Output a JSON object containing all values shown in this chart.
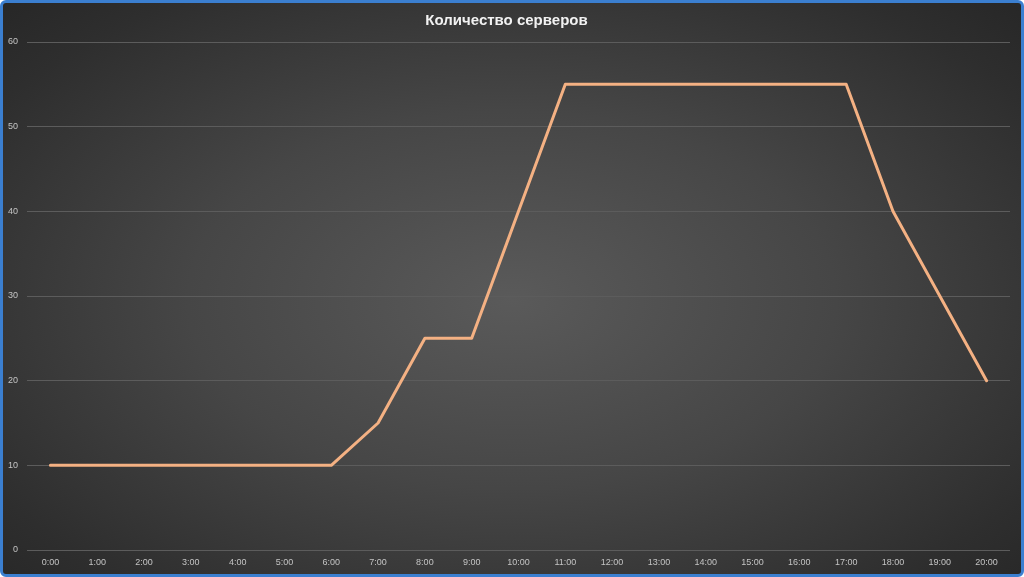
{
  "chart_data": {
    "type": "line",
    "title": "Количество серверов",
    "categories": [
      "0:00",
      "1:00",
      "2:00",
      "3:00",
      "4:00",
      "5:00",
      "6:00",
      "7:00",
      "8:00",
      "9:00",
      "10:00",
      "11:00",
      "12:00",
      "13:00",
      "14:00",
      "15:00",
      "16:00",
      "17:00",
      "18:00",
      "19:00",
      "20:00"
    ],
    "series": [
      {
        "color": "#f4b183",
        "values": [
          10,
          10,
          10,
          10,
          10,
          10,
          10,
          15,
          25,
          25,
          40,
          55,
          55,
          55,
          55,
          55,
          55,
          55,
          40,
          30,
          20
        ]
      }
    ],
    "ylim": [
      0,
      60
    ],
    "yticks": [
      0,
      10,
      20,
      30,
      40,
      50,
      60
    ],
    "grid": "y",
    "marker": "none",
    "line_style": "solid"
  }
}
